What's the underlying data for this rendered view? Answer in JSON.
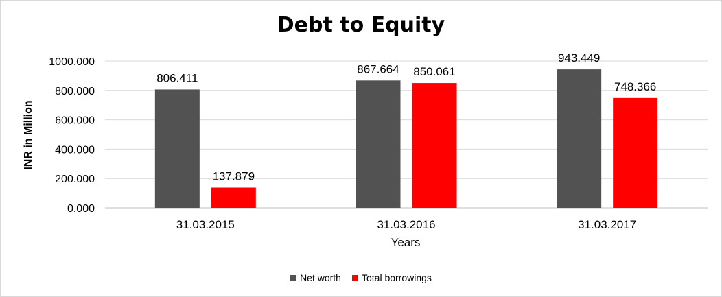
{
  "chart_data": {
    "type": "bar",
    "title": "Debt to Equity",
    "xlabel": "Years",
    "ylabel": "INR in Million",
    "categories": [
      "31.03.2015",
      "31.03.2016",
      "31.03.2017"
    ],
    "series": [
      {
        "name": "Net worth",
        "values": [
          806.411,
          867.664,
          943.449
        ],
        "color": "#525252",
        "labels": [
          "806.411",
          "867.664",
          "943.449"
        ]
      },
      {
        "name": "Total borrowings",
        "values": [
          137.879,
          850.061,
          748.366
        ],
        "color": "#ff0000",
        "labels": [
          "137.879",
          "850.061",
          "748.366"
        ]
      }
    ],
    "yticks": [
      "0.000",
      "200.000",
      "400.000",
      "600.000",
      "800.000",
      "1000.000"
    ],
    "ylim": [
      0,
      1000
    ],
    "grid": true,
    "legend_position": "bottom"
  }
}
